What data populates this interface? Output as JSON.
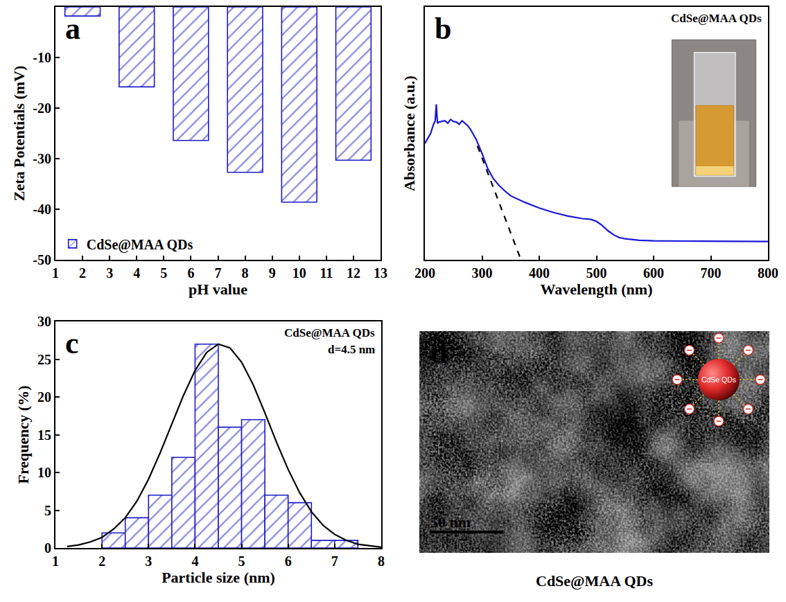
{
  "chart_data": [
    {
      "panel_label": "a",
      "type": "bar",
      "x": [
        2,
        4,
        6,
        8,
        10,
        12
      ],
      "series": [
        {
          "name": "CdSe@MAA QDs",
          "color": "#1c1cc8",
          "values": [
            -1.8,
            -15.8,
            -26.4,
            -32.7,
            -38.6,
            -30.3
          ]
        }
      ],
      "marker": "hatched",
      "x_label": "pH value",
      "y_label": "Zeta Potentials (mV)",
      "xlim": [
        1,
        13
      ],
      "xticks": [
        1,
        2,
        3,
        4,
        5,
        6,
        7,
        8,
        9,
        10,
        11,
        12,
        13
      ],
      "ylim": [
        -50,
        0
      ],
      "yticks": [
        -50,
        -40,
        -30,
        -20,
        -10,
        0
      ],
      "legend": "lower left",
      "grid": false
    },
    {
      "panel_label": "b",
      "type": "line",
      "annotations": [
        "CdSe@MAA QDs"
      ],
      "x_label": "Wavelength (nm)",
      "y_label": "Absorbance (a.u.)",
      "series": [
        {
          "color": "#1818d8",
          "x": [
            200,
            205,
            210,
            215,
            218,
            220,
            222,
            225,
            230,
            235,
            240,
            245,
            250,
            255,
            260,
            265,
            270,
            275,
            280,
            290,
            300,
            310,
            320,
            330,
            340,
            350,
            375,
            400,
            425,
            450,
            475,
            490,
            500,
            510,
            520,
            530,
            540,
            550,
            575,
            600,
            650,
            700,
            750,
            800
          ],
          "values": [
            0.46,
            0.48,
            0.5,
            0.535,
            0.55,
            0.615,
            0.54,
            0.545,
            0.547,
            0.55,
            0.54,
            0.555,
            0.547,
            0.545,
            0.536,
            0.55,
            0.54,
            0.53,
            0.515,
            0.475,
            0.42,
            0.36,
            0.32,
            0.293,
            0.272,
            0.253,
            0.227,
            0.205,
            0.187,
            0.173,
            0.163,
            0.16,
            0.152,
            0.136,
            0.115,
            0.099,
            0.088,
            0.083,
            0.077,
            0.075,
            0.074,
            0.074,
            0.073,
            0.072
          ]
        },
        {
          "color": "#000000",
          "line_style": "dashed",
          "x": [
            292,
            368
          ],
          "values": [
            0.45,
            0.0
          ]
        }
      ],
      "xlim": [
        200,
        800
      ],
      "xticks": [
        200,
        300,
        400,
        500,
        600,
        700,
        800
      ],
      "ylim": [
        0,
        1
      ],
      "tick_labels": "x",
      "grid": false
    },
    {
      "panel_label": "c",
      "type": "histogram",
      "annotations": [
        "CdSe@MAA QDs",
        "d=4.5 nm"
      ],
      "x_label": "Particle size (nm)",
      "y_label": "Frequency (%)",
      "series": [
        {
          "type": "histogram",
          "color": "#1c1cc8",
          "marker": "hatched",
          "bins": [
            2.0,
            2.5,
            3.0,
            3.5,
            4.0,
            4.5,
            5.0,
            5.5,
            6.0,
            6.5,
            7.0,
            7.5
          ],
          "values": [
            2,
            4,
            7,
            12,
            27,
            16,
            17,
            7,
            6,
            1,
            1
          ]
        },
        {
          "type": "line",
          "color": "#000000",
          "x": [
            1.25,
            1.5,
            1.75,
            2,
            2.25,
            2.5,
            2.75,
            3,
            3.25,
            3.5,
            3.75,
            4,
            4.25,
            4.5,
            4.75,
            5,
            5.25,
            5.5,
            5.75,
            6,
            6.25,
            6.5,
            6.75,
            7,
            7.25,
            7.5,
            7.75,
            8
          ],
          "values": [
            0.2,
            0.4,
            0.8,
            1.4,
            2.5,
            4.0,
            6.2,
            9.1,
            12.6,
            16.4,
            20.2,
            23.5,
            25.9,
            27.0,
            26.5,
            24.6,
            21.6,
            17.9,
            14.0,
            10.4,
            7.3,
            4.8,
            3.0,
            1.8,
            1.0,
            0.5,
            0.3,
            0.1
          ]
        }
      ],
      "xlim": [
        1,
        8
      ],
      "xticks": [
        1,
        2,
        3,
        4,
        5,
        6,
        7,
        8
      ],
      "ylim": [
        0,
        30
      ],
      "yticks": [
        0,
        5,
        10,
        15,
        20,
        25,
        30
      ],
      "grid": false
    }
  ],
  "image_panel": {
    "panel_label": "d",
    "scale_bar": "50 nm",
    "schematic_label": "CdSe QDs",
    "caption": "CdSe@MAA QDs"
  }
}
